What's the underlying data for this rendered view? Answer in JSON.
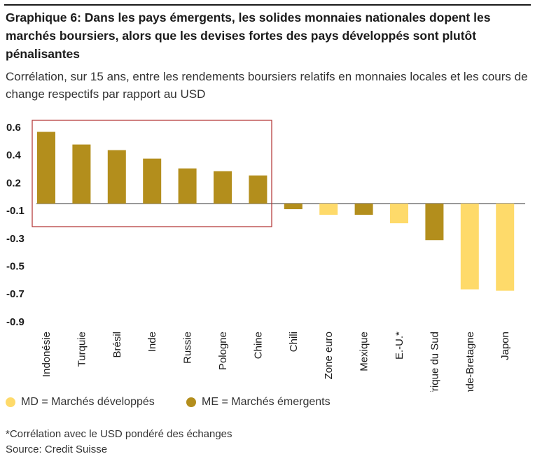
{
  "title": "Graphique 6: Dans les pays émergents, les solides monnaies nationales dopent les marchés boursiers, alors que les devises fortes des pays développés sont plutôt pénalisantes",
  "subtitle": "Corrélation, sur 15 ans, entre les rendements boursiers relatifs en monnaies locales et les cours de change respectifs par rapport au USD",
  "legend": [
    {
      "label": "MD = Marchés développés",
      "color": "#FEDA6A"
    },
    {
      "label": "ME = Marchés émergents",
      "color": "#B38E1C"
    }
  ],
  "footnote": "*Corrélation avec le USD pondéré des échanges",
  "source": "Source: Credit Suisse",
  "chart_data": {
    "type": "bar",
    "categories": [
      "Indonésie",
      "Turquie",
      "Brésil",
      "Inde",
      "Russie",
      "Pologne",
      "Chine",
      "Chili",
      "Zone euro",
      "Mexique",
      "E.-U.*",
      "Afrique du Sud",
      "Grande-Bretagne",
      "Japon"
    ],
    "values": [
      0.51,
      0.42,
      0.38,
      0.32,
      0.25,
      0.23,
      0.2,
      -0.04,
      -0.08,
      -0.08,
      -0.14,
      -0.26,
      -0.61,
      -0.62
    ],
    "groups": [
      "ME",
      "ME",
      "ME",
      "ME",
      "ME",
      "ME",
      "ME",
      "ME",
      "MD",
      "ME",
      "MD",
      "ME",
      "MD",
      "MD"
    ],
    "y_tick_labels": [
      "0.6",
      "0.4",
      "0.2",
      "-0.1",
      "-0.3",
      "-0.5",
      "-0.7",
      "-0.9"
    ],
    "ylim": [
      -0.9,
      0.6
    ],
    "grid": false,
    "highlight_box": "around first seven emerging-market bars",
    "colors": {
      "ME": "#B38E1C",
      "MD": "#FEDA6A",
      "highlight": "#B03030",
      "axis": "#333333"
    }
  }
}
